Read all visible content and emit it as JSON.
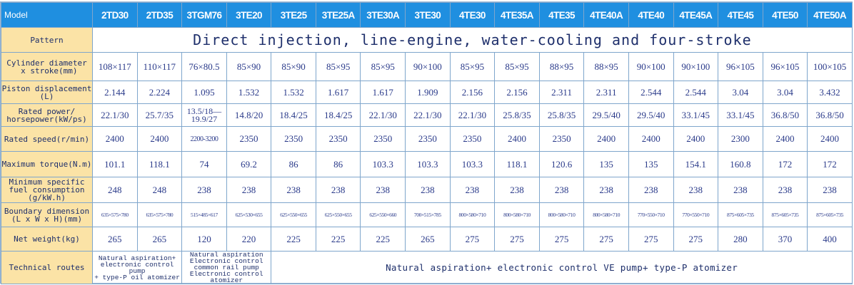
{
  "header": {
    "corner": "Model",
    "models": [
      "2TD30",
      "2TD35",
      "3TGM76",
      "3TE20",
      "3TE25",
      "3TE25A",
      "3TE30A",
      "3TE30",
      "4TE30",
      "4TE35A",
      "4TE35",
      "4TE40A",
      "4TE40",
      "4TE45A",
      "4TE45",
      "4TE50",
      "4TE50A"
    ]
  },
  "pattern": {
    "label": "Pattern",
    "value": "Direct injection, line-engine, water-cooling and four-stroke"
  },
  "cylinder": {
    "label_line1": "Cylinder diameter",
    "label_line2": " x stroke(mm)",
    "values": [
      "108×117",
      "110×117",
      "76×80.5",
      "85×90",
      "85×90",
      "85×95",
      "85×95",
      "90×100",
      "85×95",
      "85×95",
      "88×95",
      "88×95",
      "90×100",
      "90×100",
      "96×105",
      "96×105",
      "100×105"
    ]
  },
  "displacement": {
    "label_line1": "Piston displacement",
    "label_line2": "(L)",
    "values": [
      "2.144",
      "2.224",
      "1.095",
      "1.532",
      "1.532",
      "1.617",
      "1.617",
      "1.909",
      "2.156",
      "2.156",
      "2.311",
      "2.311",
      "2.544",
      "2.544",
      "3.04",
      "3.04",
      "3.432"
    ]
  },
  "power": {
    "label_line1": "Rated power/",
    "label_line2": "horsepower(kW/ps)",
    "values": [
      "22.1/30",
      "25.7/35",
      "13.5/18—19.9/27",
      "14.8/20",
      "18.4/25",
      "18.4/25",
      "22.1/30",
      "22.1/30",
      "22.1/30",
      "25.8/35",
      "25.8/35",
      "29.5/40",
      "29.5/40",
      "33.1/45",
      "33.1/45",
      "36.8/50",
      "36.8/50"
    ]
  },
  "speed": {
    "label": "Rated speed(r/min)",
    "values": [
      "2400",
      "2400",
      "2200-3200",
      "2350",
      "2350",
      "2350",
      "2350",
      "2350",
      "2350",
      "2400",
      "2350",
      "2400",
      "2400",
      "2400",
      "2300",
      "2400",
      "2400"
    ]
  },
  "torque": {
    "label": "Maximum torque(N.m)",
    "values": [
      "101.1",
      "118.1",
      "74",
      "69.2",
      "86",
      "86",
      "103.3",
      "103.3",
      "103.3",
      "118.1",
      "120.6",
      "135",
      "135",
      "154.1",
      "160.8",
      "172",
      "172"
    ]
  },
  "fuel": {
    "label_line1": "Minimum specific",
    "label_line2": "fuel consumption",
    "label_line3": "(g/kW.h)",
    "values": [
      "248",
      "248",
      "238",
      "238",
      "238",
      "238",
      "238",
      "238",
      "238",
      "238",
      "238",
      "238",
      "238",
      "238",
      "238",
      "238",
      "238"
    ]
  },
  "boundary": {
    "label_line1": "Boundary dimension",
    "label_line2": "(L x W x H)(mm)",
    "values": [
      "635×575×780",
      "635×575×780",
      "515×485×617",
      "625×530×655",
      "625×550×655",
      "625×550×655",
      "625×550×660",
      "700×515×785",
      "800×580×710",
      "800×580×710",
      "800×580×710",
      "800×580×710",
      "770×550×710",
      "770×550×710",
      "875×605×735",
      "875×605×735",
      "875×605×735"
    ]
  },
  "weight": {
    "label": "Net weight(kg)",
    "values": [
      "265",
      "265",
      "120",
      "220",
      "225",
      "225",
      "225",
      "265",
      "275",
      "275",
      "275",
      "275",
      "275",
      "275",
      "280",
      "370",
      "400"
    ]
  },
  "technical": {
    "label": "Technical routes",
    "route_a": "Natural aspiration+\nelectronic control pump\n+ type-P oil atomizer",
    "route_b": "Natural aspiration\nElectronic control common rail pump\nElectronic control atomizer",
    "route_c": "Natural aspiration+ electronic control VE pump+ type-P atomizer"
  },
  "colors": {
    "header_bg": "#1f8fe0",
    "label_bg": "#fbe3a6",
    "value_text": "#2a3a8a"
  }
}
